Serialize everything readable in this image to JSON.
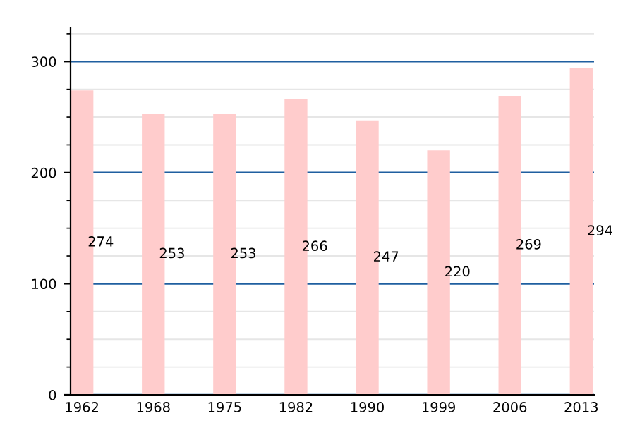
{
  "chart_data": {
    "type": "bar",
    "categories": [
      "1962",
      "1968",
      "1975",
      "1982",
      "1990",
      "1999",
      "2006",
      "2013"
    ],
    "values": [
      274,
      253,
      253,
      266,
      247,
      220,
      269,
      294
    ],
    "color": "#ffcccc",
    "ylim": [
      0,
      330
    ],
    "yticks": [
      0,
      100,
      200,
      300
    ],
    "grid": "y",
    "data_labels": true
  }
}
